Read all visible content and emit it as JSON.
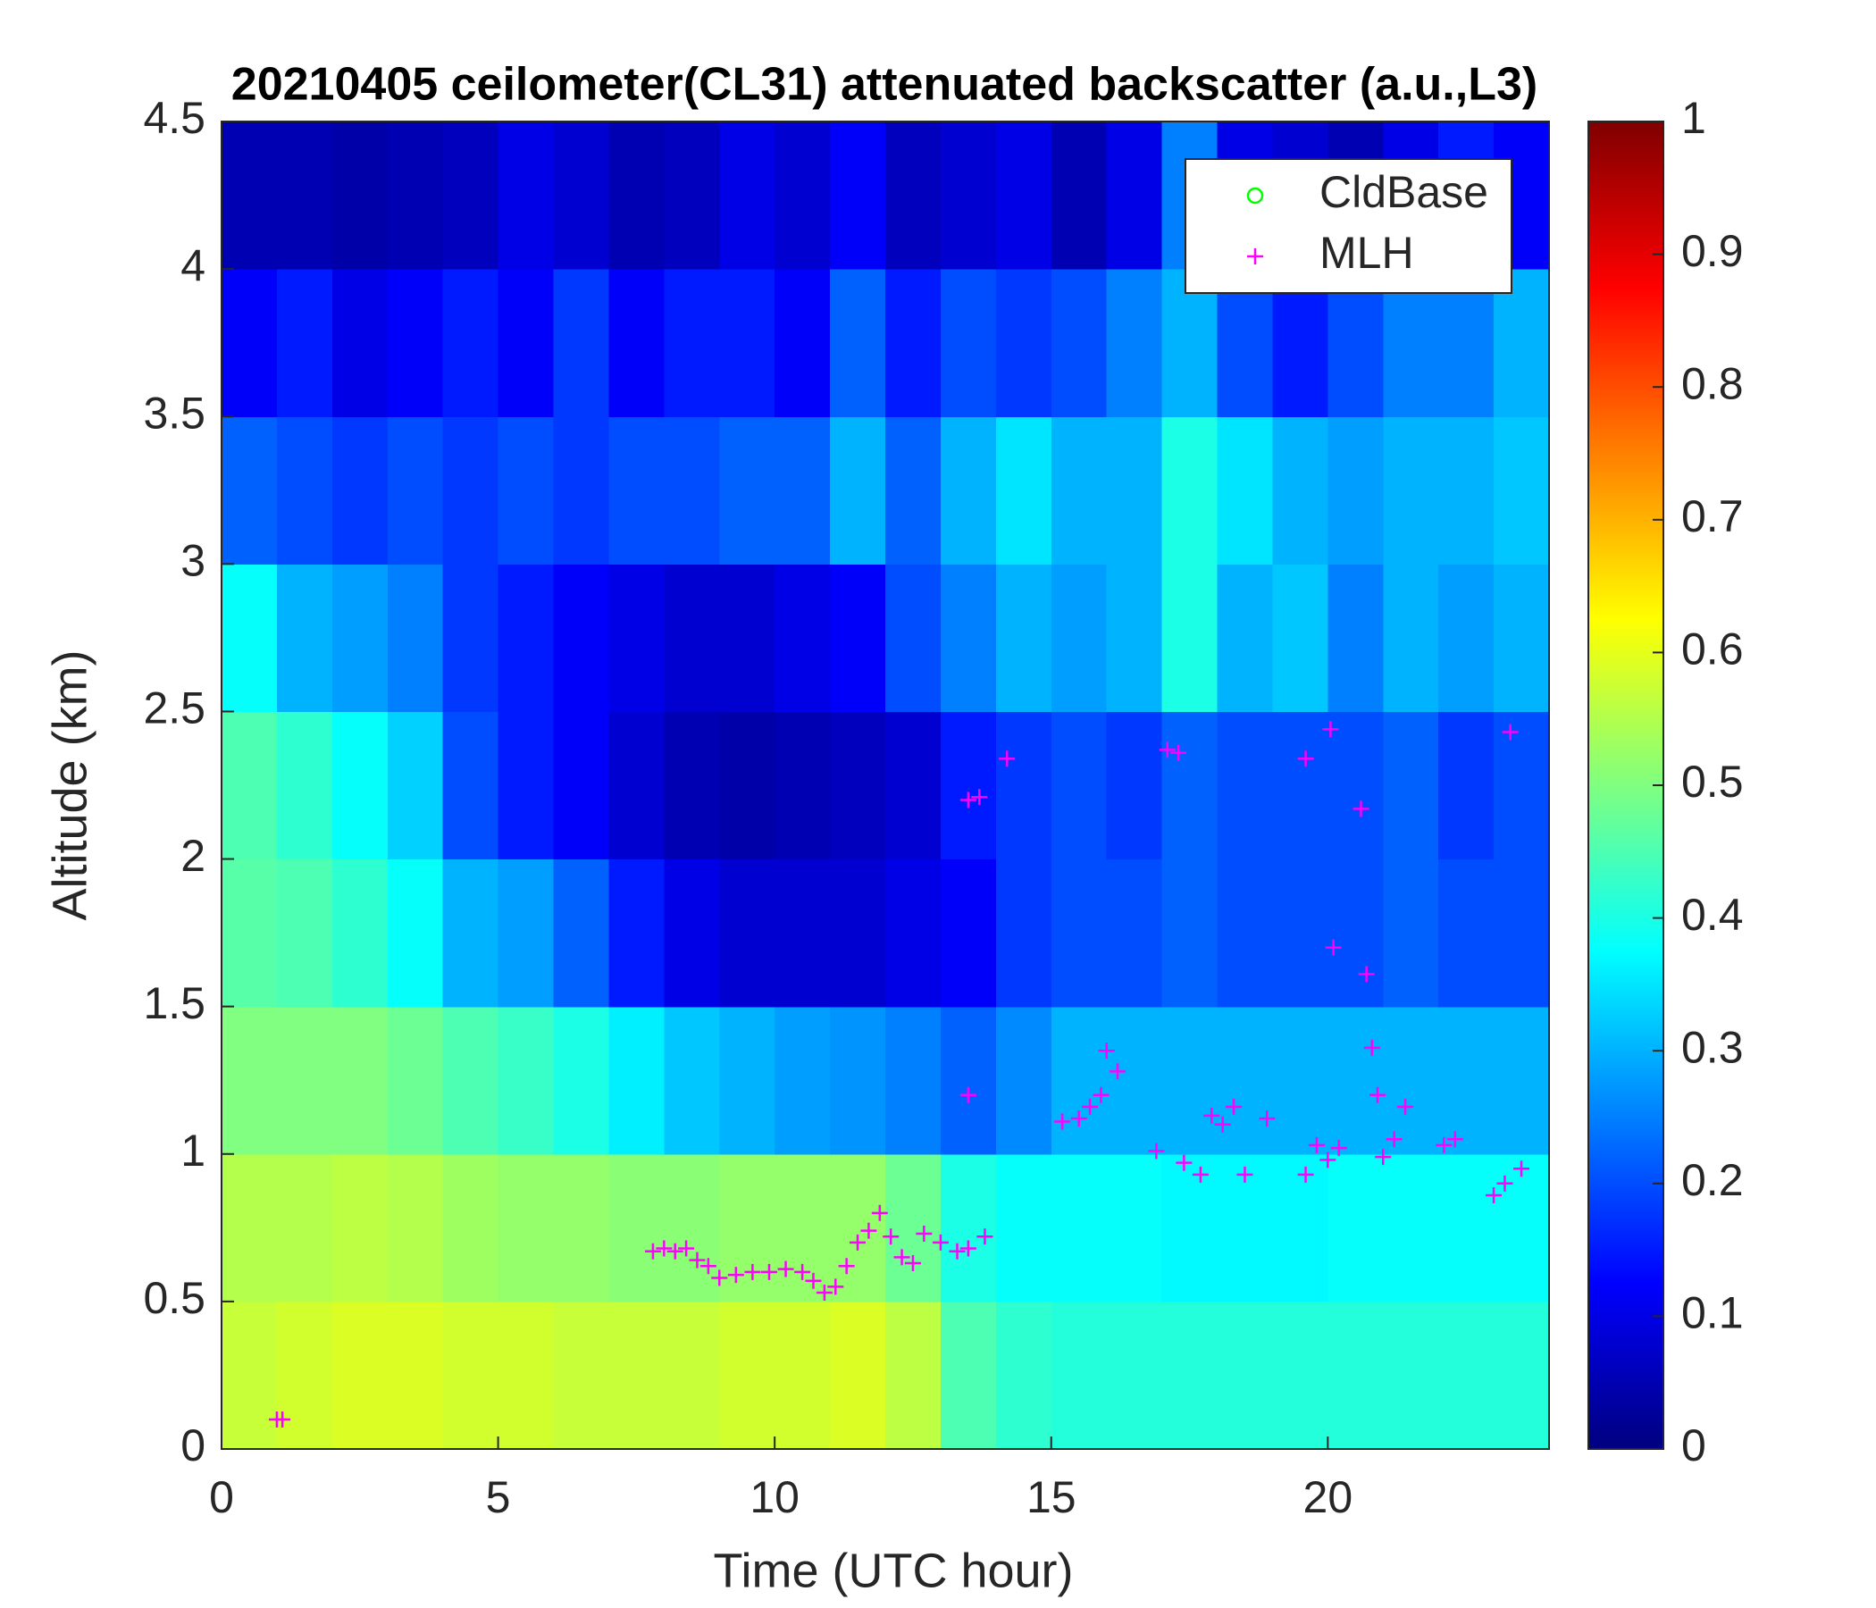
{
  "chart_data": {
    "type": "heatmap",
    "title": "20210405 ceilometer(CL31) attenuated backscatter (a.u.,L3)",
    "xlabel": "Time (UTC hour)",
    "ylabel": "Altitude (km)",
    "x": [
      0.5,
      1.5,
      2.5,
      3.5,
      4.5,
      5.5,
      6.5,
      7.5,
      8.5,
      9.5,
      10.5,
      11.5,
      12.5,
      13.5,
      14.5,
      15.5,
      16.5,
      17.5,
      18.5,
      19.5,
      20.5,
      21.5,
      22.5,
      23.5
    ],
    "y": [
      0.25,
      0.75,
      1.25,
      1.75,
      2.25,
      2.75,
      3.25,
      3.75,
      4.25
    ],
    "z": [
      [
        0.57,
        0.58,
        0.59,
        0.59,
        0.58,
        0.58,
        0.57,
        0.57,
        0.57,
        0.58,
        0.58,
        0.59,
        0.56,
        0.45,
        0.42,
        0.41,
        0.41,
        0.41,
        0.41,
        0.41,
        0.41,
        0.41,
        0.41,
        0.41
      ],
      [
        0.55,
        0.55,
        0.56,
        0.55,
        0.53,
        0.52,
        0.52,
        0.51,
        0.51,
        0.52,
        0.52,
        0.52,
        0.48,
        0.4,
        0.38,
        0.38,
        0.38,
        0.37,
        0.37,
        0.37,
        0.38,
        0.38,
        0.38,
        0.38
      ],
      [
        0.5,
        0.5,
        0.5,
        0.48,
        0.45,
        0.43,
        0.4,
        0.36,
        0.32,
        0.3,
        0.28,
        0.27,
        0.25,
        0.22,
        0.26,
        0.3,
        0.3,
        0.3,
        0.3,
        0.3,
        0.3,
        0.3,
        0.3,
        0.3
      ],
      [
        0.46,
        0.45,
        0.42,
        0.38,
        0.3,
        0.28,
        0.22,
        0.15,
        0.1,
        0.08,
        0.08,
        0.08,
        0.1,
        0.12,
        0.18,
        0.2,
        0.2,
        0.22,
        0.2,
        0.2,
        0.2,
        0.22,
        0.2,
        0.2
      ],
      [
        0.45,
        0.42,
        0.38,
        0.33,
        0.2,
        0.15,
        0.12,
        0.08,
        0.05,
        0.04,
        0.05,
        0.06,
        0.08,
        0.15,
        0.18,
        0.2,
        0.18,
        0.22,
        0.2,
        0.2,
        0.2,
        0.22,
        0.18,
        0.2
      ],
      [
        0.38,
        0.3,
        0.28,
        0.25,
        0.18,
        0.15,
        0.12,
        0.1,
        0.08,
        0.08,
        0.1,
        0.12,
        0.2,
        0.25,
        0.3,
        0.28,
        0.3,
        0.4,
        0.3,
        0.32,
        0.25,
        0.3,
        0.28,
        0.3
      ],
      [
        0.22,
        0.2,
        0.18,
        0.2,
        0.18,
        0.2,
        0.18,
        0.2,
        0.2,
        0.22,
        0.22,
        0.3,
        0.22,
        0.3,
        0.35,
        0.3,
        0.3,
        0.4,
        0.35,
        0.3,
        0.28,
        0.3,
        0.3,
        0.32
      ],
      [
        0.12,
        0.15,
        0.1,
        0.12,
        0.15,
        0.12,
        0.18,
        0.12,
        0.15,
        0.15,
        0.12,
        0.22,
        0.15,
        0.2,
        0.18,
        0.2,
        0.25,
        0.3,
        0.2,
        0.15,
        0.2,
        0.25,
        0.25,
        0.3
      ],
      [
        0.05,
        0.05,
        0.04,
        0.05,
        0.06,
        0.1,
        0.08,
        0.05,
        0.06,
        0.1,
        0.08,
        0.12,
        0.06,
        0.08,
        0.1,
        0.05,
        0.1,
        0.25,
        0.1,
        0.08,
        0.05,
        0.1,
        0.15,
        0.12
      ]
    ],
    "colormap": "jet",
    "clim": [
      0,
      1
    ],
    "cticks": [
      0,
      0.1,
      0.2,
      0.3,
      0.4,
      0.5,
      0.6,
      0.7,
      0.8,
      0.9,
      1
    ],
    "xlim": [
      0,
      24
    ],
    "xticks": [
      0,
      5,
      10,
      15,
      20
    ],
    "ylim": [
      0,
      4.5
    ],
    "yticks": [
      0,
      0.5,
      1,
      1.5,
      2,
      2.5,
      3,
      3.5,
      4,
      4.5
    ],
    "legend": "top right",
    "series": [
      {
        "name": "CldBase",
        "marker": "circle",
        "color": "#00ff00",
        "x": [],
        "values": []
      },
      {
        "name": "MLH",
        "marker": "plus",
        "color": "#ff00ff",
        "x": [
          1.0,
          1.1,
          7.8,
          8.0,
          8.2,
          8.4,
          8.6,
          8.8,
          9.0,
          9.3,
          9.6,
          9.9,
          10.2,
          10.5,
          10.7,
          10.9,
          11.1,
          11.3,
          11.5,
          11.7,
          11.9,
          12.1,
          12.3,
          12.5,
          12.7,
          13.0,
          13.3,
          13.5,
          13.8,
          13.5,
          13.5,
          13.7,
          14.2,
          15.2,
          15.5,
          15.7,
          15.9,
          16.0,
          16.2,
          16.9,
          17.1,
          17.3,
          17.4,
          17.7,
          17.9,
          18.1,
          18.3,
          18.5,
          18.9,
          19.6,
          19.6,
          19.8,
          20.0,
          20.05,
          20.1,
          20.2,
          20.6,
          20.7,
          20.8,
          20.9,
          21.0,
          21.2,
          21.4,
          22.1,
          22.3,
          23.0,
          23.2,
          23.3,
          23.5
        ],
        "values": [
          0.1,
          0.1,
          0.67,
          0.68,
          0.67,
          0.68,
          0.64,
          0.62,
          0.58,
          0.59,
          0.6,
          0.6,
          0.61,
          0.6,
          0.57,
          0.53,
          0.55,
          0.62,
          0.7,
          0.74,
          0.8,
          0.72,
          0.65,
          0.63,
          0.73,
          0.7,
          0.67,
          0.68,
          0.72,
          1.2,
          2.2,
          2.21,
          2.34,
          1.11,
          1.12,
          1.16,
          1.2,
          1.35,
          1.28,
          1.01,
          2.37,
          2.36,
          0.97,
          0.93,
          1.13,
          1.1,
          1.16,
          0.93,
          1.12,
          0.93,
          2.34,
          1.03,
          0.98,
          2.44,
          1.7,
          1.02,
          2.17,
          1.61,
          1.36,
          1.2,
          0.99,
          1.05,
          1.16,
          1.03,
          1.05,
          0.86,
          0.9,
          2.43,
          0.95
        ]
      }
    ]
  }
}
